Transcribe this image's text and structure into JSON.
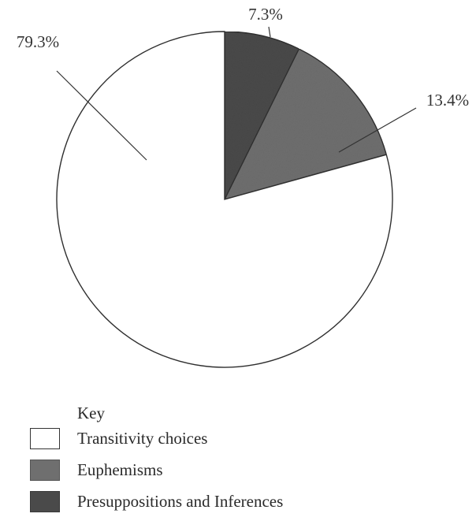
{
  "chart_data": {
    "type": "pie",
    "title": "",
    "slices": [
      {
        "label": "Transitivity choices",
        "value": 79.3,
        "value_label": "79.3%",
        "color": "#ffffff"
      },
      {
        "label": "Euphemisms",
        "value": 13.4,
        "value_label": "13.4%",
        "color": "#6f6f6f"
      },
      {
        "label": "Presuppositions and Inferences",
        "value": 7.3,
        "value_label": "7.3%",
        "color": "#4a4a4a"
      }
    ],
    "start_angle": "12 o'clock",
    "direction": "clockwise",
    "slice_order": [
      "Presuppositions and Inferences",
      "Euphemisms",
      "Transitivity choices"
    ],
    "legend": {
      "title": "Key",
      "placement": "bottom-left",
      "items": [
        "Transitivity choices",
        "Euphemisms",
        "Presuppositions and Inferences"
      ]
    }
  }
}
